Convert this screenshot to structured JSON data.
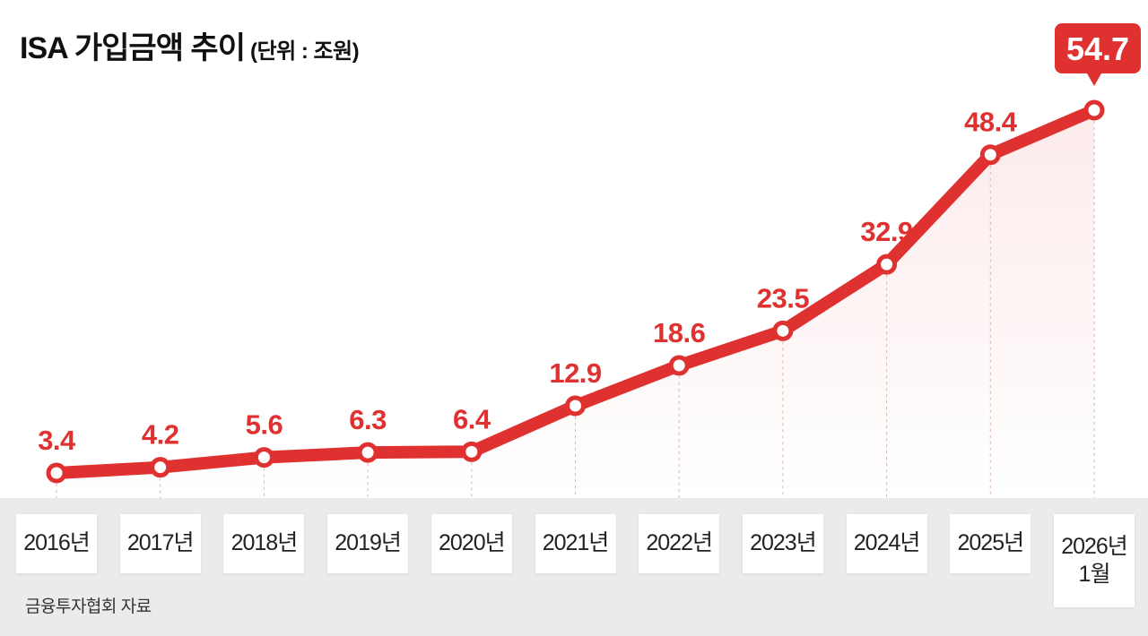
{
  "chart_data": {
    "type": "line",
    "title": "ISA 가입금액 추이",
    "unit_label": "(단위 : 조원)",
    "categories": [
      "2016년",
      "2017년",
      "2018년",
      "2019년",
      "2020년",
      "2021년",
      "2022년",
      "2023년",
      "2024년",
      "2025년",
      "2026년\n1월"
    ],
    "series": [
      {
        "values": [
          3.4,
          4.2,
          5.6,
          6.3,
          6.4,
          12.9,
          18.6,
          23.5,
          32.9,
          48.4,
          54.7
        ]
      }
    ],
    "value_labels": [
      "3.4",
      "4.2",
      "5.6",
      "6.3",
      "6.4",
      "12.9",
      "18.6",
      "23.5",
      "32.9",
      "48.4",
      "54.7"
    ],
    "highlight_index": 10,
    "xlabel": "",
    "ylabel": "",
    "grid": false,
    "colors": {
      "line": "#e03131",
      "highlight_bg": "#e03131",
      "band": "#ebebeb"
    }
  },
  "source": "금융투자협회 자료"
}
